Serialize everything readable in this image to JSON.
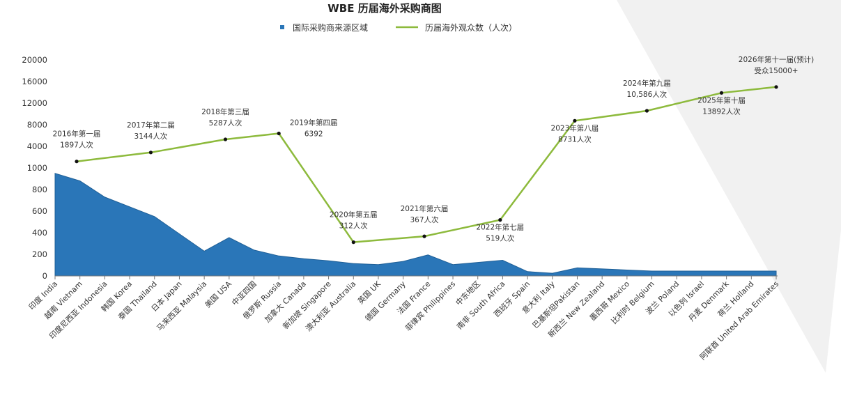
{
  "chart_data": {
    "type": "area",
    "title": "WBE 历届海外采购商图",
    "legend": [
      {
        "label": "国际采购商来源区域",
        "kind": "square",
        "color": "#2a76b8"
      },
      {
        "label": "历届海外观众数（人次）",
        "kind": "line",
        "color": "#8dba3c"
      }
    ],
    "y_ticks": [
      "0",
      "200",
      "400",
      "600",
      "800",
      "1000",
      "4000",
      "8000",
      "12000",
      "16000",
      "20000"
    ],
    "categories": [
      "印度 India",
      "越南 Vietnam",
      "印度尼西亚 Indonesia",
      "韩国 Korea",
      "泰国 Thailand",
      "日本 Japan",
      "马来西亚 Malaysia",
      "美国 USA",
      "中亚四国",
      "俄罗斯 Russia",
      "加拿大 Canada",
      "新加坡 Singapore",
      "澳大利亚 Australia",
      "英国 UK",
      "德国 Germany",
      "法国 France",
      "菲律宾 Philippines",
      "中东地区",
      "南非 South Africa",
      "西班牙 Spain",
      "意大利 Italy",
      "巴基斯坦Pakistan",
      "新西兰 New Zealand",
      "墨西哥 Mexico",
      "比利时 Belgium",
      "波兰 Poland",
      "以色列 Israel",
      "丹麦 Denmark",
      "荷兰 Holland",
      "阿联酋 United Arab Emirates"
    ],
    "series": [
      {
        "name": "国际采购商来源区域",
        "type": "area",
        "color": "#2a76b8",
        "values": [
          950,
          880,
          730,
          640,
          550,
          390,
          230,
          355,
          240,
          185,
          160,
          140,
          115,
          105,
          135,
          195,
          105,
          125,
          145,
          40,
          25,
          75,
          65,
          55,
          45,
          45,
          45,
          45,
          45,
          45
        ]
      },
      {
        "name": "历届海外观众数（人次）",
        "type": "line",
        "color": "#8dba3c",
        "points": [
          {
            "x_index": 0.87,
            "value": 1897,
            "label": [
              "2016年第一届",
              "1897人次"
            ],
            "label_pos": "above"
          },
          {
            "x_index": 3.85,
            "value": 3144,
            "label": [
              "2017年第二届",
              "3144人次"
            ],
            "label_pos": "above"
          },
          {
            "x_index": 6.85,
            "value": 5287,
            "label": [
              "2018年第三届",
              "5287人次"
            ],
            "label_pos": "above"
          },
          {
            "x_index": 9.0,
            "value": 6392,
            "label": [
              "2019年第四届",
              "6392"
            ],
            "label_pos": "right"
          },
          {
            "x_index": 12.0,
            "value": 312,
            "label": [
              "2020年第五届",
              "312人次"
            ],
            "label_pos": "above"
          },
          {
            "x_index": 14.85,
            "value": 367,
            "label": [
              "2021年第六届",
              "367人次"
            ],
            "label_pos": "above"
          },
          {
            "x_index": 17.9,
            "value": 519,
            "label": [
              "2022年第七届",
              "519人次"
            ],
            "label_pos": "below"
          },
          {
            "x_index": 20.9,
            "value": 8731,
            "label": [
              "2023年第八届",
              "8731人次"
            ],
            "label_pos": "below"
          },
          {
            "x_index": 23.8,
            "value": 10586,
            "label": [
              "2024年第九届",
              "10,586人次"
            ],
            "label_pos": "above"
          },
          {
            "x_index": 26.8,
            "value": 13892,
            "label": [
              "2025年第十届",
              "13892人次"
            ],
            "label_pos": "below"
          },
          {
            "x_index": 29.0,
            "value": 15000,
            "label": [
              "2026年第十一届(预计)",
              "受众15000+"
            ],
            "label_pos": "above"
          }
        ]
      }
    ],
    "grid": false,
    "legend_position": "top-center"
  }
}
